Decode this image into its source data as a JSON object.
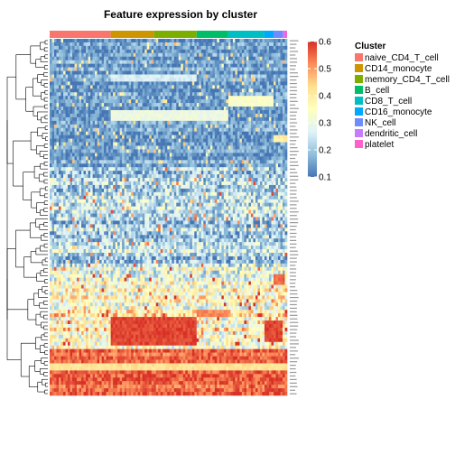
{
  "chart_data": {
    "type": "heatmap",
    "title": "Feature expression by cluster",
    "xlabel": "",
    "ylabel": "",
    "value_range": [
      0.1,
      0.6
    ],
    "colorbar": {
      "ticks": [
        "0.6",
        "0.5",
        "0.4",
        "0.3",
        "0.2",
        "0.1"
      ],
      "colors": [
        "#4575b4",
        "#91bfdb",
        "#e0f3f8",
        "#ffffbf",
        "#fee090",
        "#fc8d59",
        "#d73027"
      ]
    },
    "legend": {
      "title": "Cluster",
      "placement": "right"
    },
    "clusters": [
      {
        "name": "naive_CD4_T_cell",
        "color": "#f8766d",
        "cells": 27
      },
      {
        "name": "CD14_monocyte",
        "color": "#cd9600",
        "cells": 19
      },
      {
        "name": "memory_CD4_T_cell",
        "color": "#7cae00",
        "cells": 19
      },
      {
        "name": "B_cell",
        "color": "#00be67",
        "cells": 14
      },
      {
        "name": "CD8_T_cell",
        "color": "#00bfc4",
        "cells": 16
      },
      {
        "name": "CD16_monocyte",
        "color": "#00a9ff",
        "cells": 4
      },
      {
        "name": "NK_cell",
        "color": "#6f8cff",
        "cells": 4
      },
      {
        "name": "dendritic_cell",
        "color": "#c77cff",
        "cells": 1
      },
      {
        "name": "platelet",
        "color": "#ff61cc",
        "cells": 1
      }
    ],
    "feature_count": 100,
    "row_blocks": [
      {
        "from": 0,
        "to": 36,
        "base": 0.15,
        "spread": 0.06,
        "overrides": [
          {
            "rows": [
              10,
              11
            ],
            "clusters": [
              1,
              2
            ],
            "value": 0.26
          },
          {
            "rows": [
              16,
              17,
              18
            ],
            "clusters": [
              4,
              5
            ],
            "value": 0.34
          },
          {
            "rows": [
              20,
              21,
              22
            ],
            "clusters": [
              1,
              2,
              3
            ],
            "value": 0.3
          },
          {
            "rows": [
              27,
              28
            ],
            "clusters": [
              6,
              7,
              8
            ],
            "value": 0.4
          }
        ]
      },
      {
        "from": 36,
        "to": 64,
        "base": 0.22,
        "spread": 0.1,
        "overrides": []
      },
      {
        "from": 64,
        "to": 76,
        "base": 0.33,
        "spread": 0.12,
        "overrides": [
          {
            "rows": [
              66,
              67,
              68
            ],
            "clusters": [
              6,
              7
            ],
            "value": 0.55
          }
        ]
      },
      {
        "from": 76,
        "to": 87,
        "base": 0.38,
        "spread": 0.12,
        "overrides": [
          {
            "rows": [
              78,
              79,
              80,
              81,
              82,
              83,
              84,
              85
            ],
            "clusters": [
              1,
              2
            ],
            "value": 0.58
          },
          {
            "rows": [
              79,
              80,
              81,
              82,
              83,
              84
            ],
            "clusters": [
              5,
              6
            ],
            "value": 0.58
          },
          {
            "rows": [
              76,
              77
            ],
            "clusters": [
              3
            ],
            "value": 0.52
          }
        ]
      },
      {
        "from": 87,
        "to": 100,
        "base": 0.55,
        "spread": 0.05,
        "overrides": [
          {
            "rows": [
              91,
              92
            ],
            "clusters": [
              0,
              1,
              2,
              3,
              4,
              5,
              6,
              7,
              8
            ],
            "value": 0.42
          }
        ]
      }
    ]
  }
}
